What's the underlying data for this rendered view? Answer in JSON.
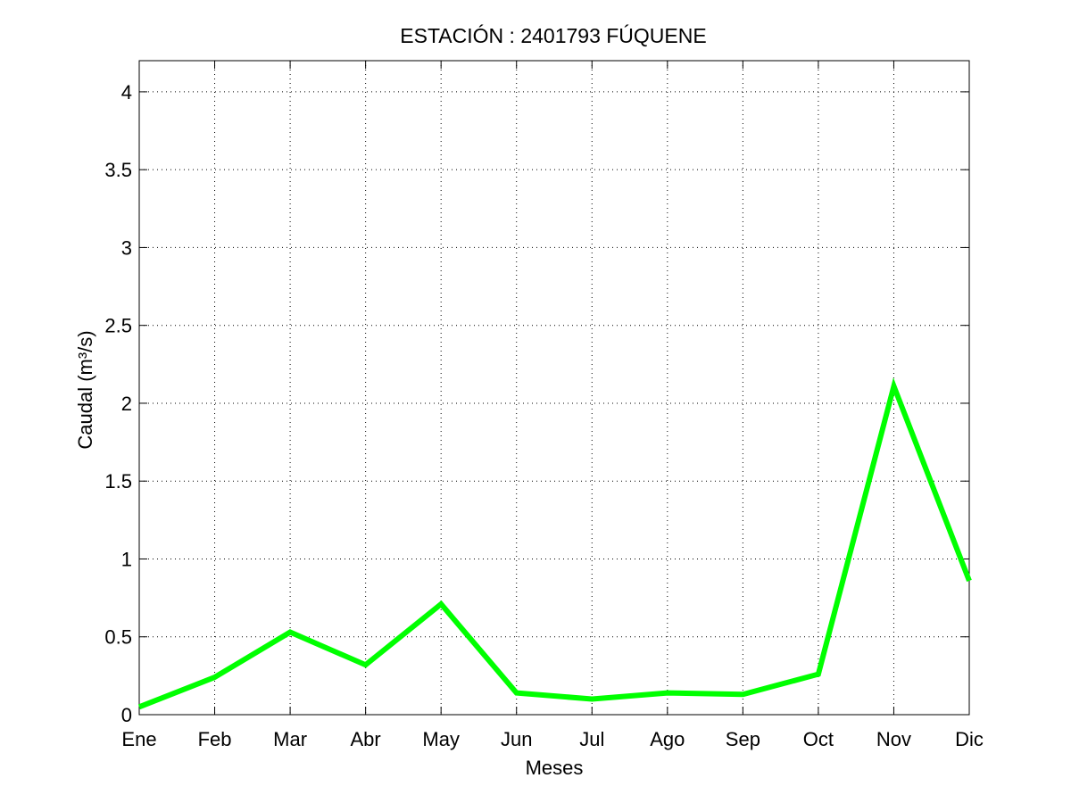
{
  "chart_data": {
    "type": "line",
    "title": "ESTACIÓN :  2401793  FÚQUENE",
    "xlabel": "Meses",
    "ylabel": "Caudal (m³/s)",
    "categories": [
      "Ene",
      "Feb",
      "Mar",
      "Abr",
      "May",
      "Jun",
      "Jul",
      "Ago",
      "Sep",
      "Oct",
      "Nov",
      "Dic"
    ],
    "yticks": [
      "0",
      "0.5",
      "1",
      "1.5",
      "2",
      "2.5",
      "3",
      "3.5",
      "4"
    ],
    "ylim": [
      0,
      4.2
    ],
    "grid": true,
    "series": [
      {
        "color": "#00ff00",
        "values": [
          0.05,
          0.24,
          0.53,
          0.32,
          0.71,
          0.14,
          0.1,
          0.14,
          0.13,
          0.26,
          2.11,
          0.86
        ]
      }
    ]
  }
}
